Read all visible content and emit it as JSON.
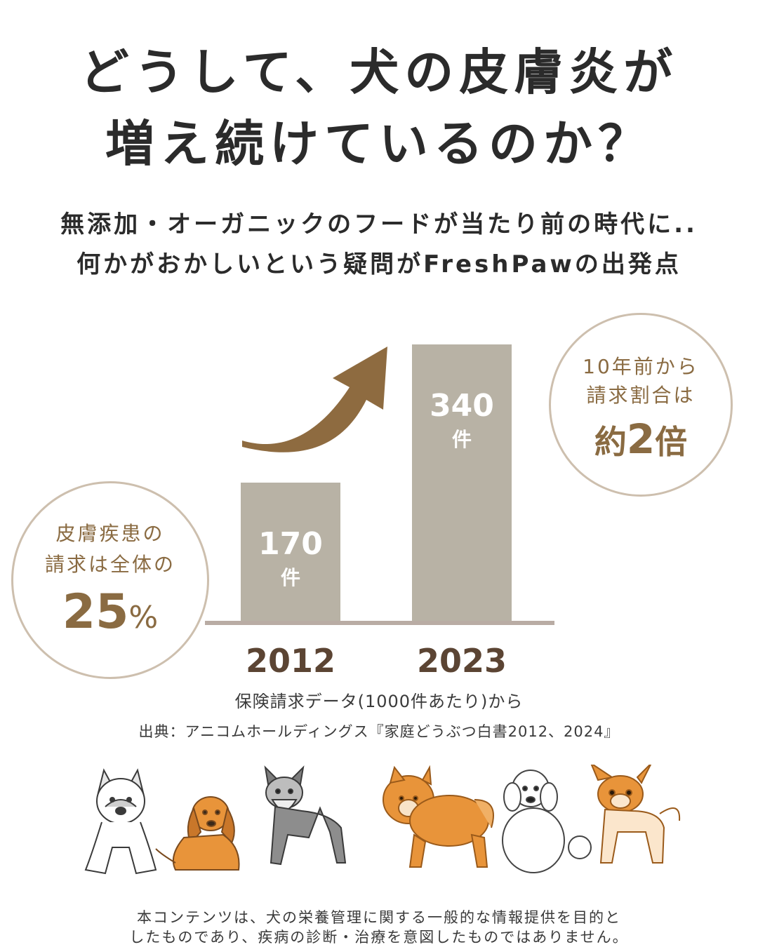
{
  "title": {
    "line1": "どうして、犬の皮膚炎が",
    "line2": "増え続けているのか？"
  },
  "subtitle": {
    "line1": "無添加・オーガニックのフードが当たり前の時代に..",
    "line2": "何かがおかしいという疑問がFreshPawの出発点"
  },
  "chart_data": {
    "type": "bar",
    "categories": [
      "2012",
      "2023"
    ],
    "values": [
      170,
      340
    ],
    "value_labels": [
      "170",
      "340"
    ],
    "value_unit": "件",
    "title": "",
    "xlabel": "",
    "ylabel": "",
    "trend": "increase"
  },
  "callouts": {
    "right": {
      "line1": "10年前から",
      "line2": "請求割合は",
      "prefix": "約",
      "value": "2",
      "suffix": "倍"
    },
    "left": {
      "line1": "皮膚疾患の",
      "line2": "請求は全体の",
      "value": "25",
      "unit": "%"
    }
  },
  "source": {
    "note": "保険請求データ(1000件あたり)から",
    "citation": "出典：アニコムホールディングス『家庭どうぶつ白書2012、2024』"
  },
  "illustrations": [
    "french-bulldog-icon",
    "dachshund-icon",
    "schnauzer-icon",
    "pomeranian-icon",
    "poodle-icon",
    "chihuahua-icon"
  ],
  "disclaimer": {
    "line1": "本コンテンツは、犬の栄養管理に関する一般的な情報提供を目的と",
    "line2": "したものであり、疾病の診断・治療を意図したものではありません。"
  },
  "colors": {
    "bar": "#b8b2a5",
    "arrow": "#8e6b40",
    "accent_text": "#8a6b42",
    "year_text": "#5b4433",
    "baseline": "#b9aca4",
    "circle_border": "#cdbfae",
    "dog_orange": "#e8943a"
  }
}
